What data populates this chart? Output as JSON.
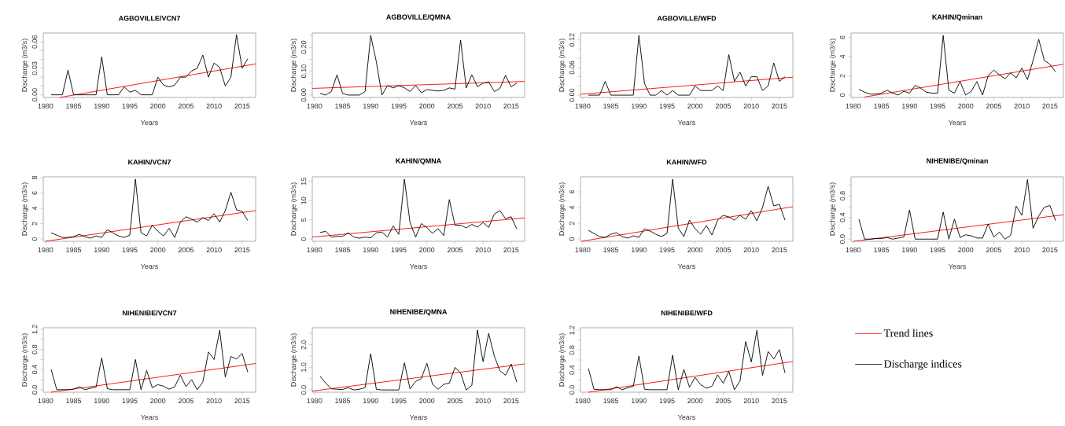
{
  "chart_data": [
    {
      "type": "line",
      "title": "AGBOVILLE/VCN7",
      "xlabel": "Years",
      "ylabel": "Discharge (m3/s)",
      "x": [
        1981,
        1982,
        1983,
        1984,
        1985,
        1986,
        1987,
        1988,
        1989,
        1990,
        1991,
        1992,
        1993,
        1994,
        1995,
        1996,
        1997,
        1998,
        1999,
        2000,
        2001,
        2002,
        2003,
        2004,
        2005,
        2006,
        2007,
        2008,
        2009,
        2010,
        2011,
        2012,
        2013,
        2014,
        2015,
        2016
      ],
      "xlim": [
        1979.6,
        2017.4
      ],
      "xticks": [
        1980,
        1985,
        1990,
        1995,
        2000,
        2005,
        2010,
        2015
      ],
      "ylim": [
        -0.003,
        0.07
      ],
      "yticks": [
        {
          "value": 0,
          "label": "0.00"
        },
        {
          "value": 0.01,
          "label": null
        },
        {
          "value": 0.02,
          "label": null
        },
        0.03,
        {
          "value": 0.04,
          "label": null
        },
        {
          "value": 0.05,
          "label": null
        },
        0.06
      ],
      "series": [
        {
          "color": "#ff0000",
          "x": [
            1982.5,
            2017.4
          ],
          "values": [
            -0.003,
            0.035
          ]
        },
        {
          "color": "#000000",
          "values": [
            0,
            0,
            0,
            0.028,
            0,
            0,
            0,
            0,
            0,
            0.043,
            0,
            0,
            0,
            0.009,
            0.003,
            0.005,
            0,
            0,
            0,
            0.02,
            0.011,
            0.009,
            0.011,
            0.02,
            0.02,
            0.027,
            0.03,
            0.045,
            0.02,
            0.036,
            0.031,
            0.01,
            0.02,
            0.068,
            0.03,
            0.041
          ]
        }
      ]
    },
    {
      "type": "line",
      "title": "AGBOVILLE/QMNA",
      "xlabel": "Years",
      "ylabel": "Discharge (m3/s)",
      "x": [
        1981,
        1982,
        1983,
        1984,
        1985,
        1986,
        1987,
        1988,
        1989,
        1990,
        1991,
        1992,
        1993,
        1994,
        1995,
        1996,
        1997,
        1998,
        1999,
        2000,
        2001,
        2002,
        2003,
        2004,
        2005,
        2006,
        2007,
        2008,
        2009,
        2010,
        2011,
        2012,
        2013,
        2014,
        2015,
        2016
      ],
      "xlim": [
        1979.6,
        2017.4
      ],
      "xticks": [
        1980,
        1985,
        1990,
        1995,
        2000,
        2005,
        2010,
        2015
      ],
      "ylim": [
        -0.01,
        0.26
      ],
      "yticks": [
        {
          "value": 0,
          "label": "0.00"
        },
        {
          "value": 0.05,
          "label": null
        },
        {
          "value": 0.1,
          "label": "0.10"
        },
        {
          "value": 0.15,
          "label": null
        },
        {
          "value": 0.2,
          "label": "0.20"
        },
        {
          "value": 0.25,
          "label": null
        }
      ],
      "series": [
        {
          "color": "#ff0000",
          "x": [
            1979.6,
            2017.4
          ],
          "values": [
            0.028,
            0.057
          ]
        },
        {
          "color": "#000000",
          "values": [
            0.007,
            0,
            0.015,
            0.085,
            0.007,
            0,
            0,
            0,
            0.015,
            0.25,
            0.14,
            0,
            0.04,
            0.03,
            0.04,
            0.03,
            0.015,
            0.04,
            0.01,
            0.023,
            0.02,
            0.017,
            0.02,
            0.03,
            0.025,
            0.23,
            0.03,
            0.085,
            0.035,
            0.05,
            0.055,
            0.015,
            0.028,
            0.083,
            0.035,
            0.05
          ]
        }
      ]
    },
    {
      "type": "line",
      "title": "AGBOVILLE/WFD",
      "xlabel": "Years",
      "ylabel": "Discharge (m3/s)",
      "x": [
        1981,
        1982,
        1983,
        1984,
        1985,
        1986,
        1987,
        1988,
        1989,
        1990,
        1991,
        1992,
        1993,
        1994,
        1995,
        1996,
        1997,
        1998,
        1999,
        2000,
        2001,
        2002,
        2003,
        2004,
        2005,
        2006,
        2007,
        2008,
        2009,
        2010,
        2011,
        2012,
        2013,
        2014,
        2015,
        2016
      ],
      "xlim": [
        1979.6,
        2017.4
      ],
      "xticks": [
        1980,
        1985,
        1990,
        1995,
        2000,
        2005,
        2010,
        2015
      ],
      "ylim": [
        -0.005,
        0.135
      ],
      "yticks": [
        {
          "value": 0,
          "label": "0.00"
        },
        {
          "value": 0.02,
          "label": null
        },
        {
          "value": 0.04,
          "label": null
        },
        0.06,
        {
          "value": 0.08,
          "label": null
        },
        {
          "value": 0.1,
          "label": null
        },
        0.12
      ],
      "series": [
        {
          "color": "#ff0000",
          "x": [
            1979.6,
            2017.4
          ],
          "values": [
            0.002,
            0.039
          ]
        },
        {
          "color": "#000000",
          "values": [
            0,
            0,
            0,
            0.03,
            0,
            0,
            0,
            0,
            0,
            0.13,
            0.025,
            0,
            0,
            0.01,
            0,
            0.01,
            0,
            0,
            0,
            0.02,
            0.01,
            0.01,
            0.01,
            0.02,
            0.01,
            0.088,
            0.03,
            0.05,
            0.02,
            0.04,
            0.04,
            0.01,
            0.02,
            0.07,
            0.03,
            0.04
          ]
        }
      ]
    },
    {
      "type": "line",
      "title": "KAHIN/Qminan",
      "xlabel": "Years",
      "ylabel": "Discharge (m3/s)",
      "x": [
        1981,
        1982,
        1983,
        1984,
        1985,
        1986,
        1987,
        1988,
        1989,
        1990,
        1991,
        1992,
        1993,
        1994,
        1995,
        1996,
        1997,
        1998,
        1999,
        2000,
        2001,
        2002,
        2003,
        2004,
        2005,
        2006,
        2007,
        2008,
        2009,
        2010,
        2011,
        2012,
        2013,
        2014,
        2015,
        2016
      ],
      "xlim": [
        1979.6,
        2017.4
      ],
      "xticks": [
        1980,
        1985,
        1990,
        1995,
        2000,
        2005,
        2010,
        2015
      ],
      "ylim": [
        -0.25,
        6.45
      ],
      "yticks": [
        0,
        2,
        4,
        6
      ],
      "series": [
        {
          "color": "#ff0000",
          "x": [
            1982,
            2017.4
          ],
          "values": [
            -0.2,
            3.2
          ]
        },
        {
          "color": "#000000",
          "values": [
            0.6,
            0.3,
            0.1,
            0.1,
            0.2,
            0.5,
            0.2,
            0,
            0.4,
            0.2,
            1,
            0.7,
            0.3,
            0.2,
            0.2,
            6.2,
            0.5,
            0.2,
            1.4,
            0,
            0.4,
            1.4,
            0,
            2,
            2.6,
            2.1,
            1.7,
            2.3,
            1.8,
            2.8,
            1.6,
            3.6,
            5.8,
            3.6,
            3.2,
            2.4
          ]
        }
      ]
    },
    {
      "type": "line",
      "title": "KAHIN/VCN7",
      "xlabel": "Years",
      "ylabel": "Discharge (m3/s)",
      "x": [
        1981,
        1982,
        1983,
        1984,
        1985,
        1986,
        1987,
        1988,
        1989,
        1990,
        1991,
        1992,
        1993,
        1994,
        1995,
        1996,
        1997,
        1998,
        1999,
        2000,
        2001,
        2002,
        2003,
        2004,
        2005,
        2006,
        2007,
        2008,
        2009,
        2010,
        2011,
        2012,
        2013,
        2014,
        2015,
        2016
      ],
      "xlim": [
        1979.6,
        2017.4
      ],
      "xticks": [
        1980,
        1985,
        1990,
        1995,
        2000,
        2005,
        2010,
        2015
      ],
      "ylim": [
        -0.3,
        8.1
      ],
      "yticks": [
        0,
        2,
        4,
        6,
        8
      ],
      "series": [
        {
          "color": "#ff0000",
          "x": [
            1980,
            2017.4
          ],
          "values": [
            -0.3,
            3.7
          ]
        },
        {
          "color": "#000000",
          "values": [
            0.8,
            0.5,
            0.2,
            0.2,
            0.3,
            0.6,
            0.3,
            0.1,
            0.4,
            0.2,
            1.2,
            0.8,
            0.4,
            0.2,
            0.5,
            7.8,
            0.8,
            0.4,
            1.8,
            1,
            0.4,
            1.4,
            0.2,
            2.2,
            2.9,
            2.6,
            2.2,
            2.8,
            2.4,
            3.3,
            2.2,
            3.7,
            6.1,
            3.8,
            3.6,
            2.4
          ]
        }
      ]
    },
    {
      "type": "line",
      "title": "KAHIN/QMNA",
      "xlabel": "Years",
      "ylabel": "Discharge (m3/s)",
      "x": [
        1981,
        1982,
        1983,
        1984,
        1985,
        1986,
        1987,
        1988,
        1989,
        1990,
        1991,
        1992,
        1993,
        1994,
        1995,
        1996,
        1997,
        1998,
        1999,
        2000,
        2001,
        2002,
        2003,
        2004,
        2005,
        2006,
        2007,
        2008,
        2009,
        2010,
        2011,
        2012,
        2013,
        2014,
        2015,
        2016
      ],
      "xlim": [
        1979.6,
        2017.4
      ],
      "xticks": [
        1980,
        1985,
        1990,
        1995,
        2000,
        2005,
        2010,
        2015
      ],
      "ylim": [
        -0.6,
        16.2
      ],
      "yticks": [
        0,
        5,
        10,
        15
      ],
      "series": [
        {
          "color": "#ff0000",
          "x": [
            1979.6,
            2017.4
          ],
          "values": [
            0.5,
            5.5
          ]
        },
        {
          "color": "#000000",
          "values": [
            1.7,
            2,
            0.5,
            0.7,
            0.7,
            1.6,
            0.5,
            0.2,
            0.5,
            0.3,
            1.6,
            1.8,
            0.5,
            3.4,
            1.2,
            15.6,
            4.3,
            0.5,
            4,
            3,
            1.5,
            2.7,
            0.9,
            10.3,
            3.6,
            3.6,
            2.9,
            3.8,
            3.1,
            4.3,
            3,
            6.5,
            7.4,
            5.3,
            5.8,
            2.6
          ]
        }
      ]
    },
    {
      "type": "line",
      "title": "KAHIN/WFD",
      "xlabel": "Years",
      "ylabel": "Discharge (m3/s)",
      "x": [
        1981,
        1982,
        1983,
        1984,
        1985,
        1986,
        1987,
        1988,
        1989,
        1990,
        1991,
        1992,
        1993,
        1994,
        1995,
        1996,
        1997,
        1998,
        1999,
        2000,
        2001,
        2002,
        2003,
        2004,
        2005,
        2006,
        2007,
        2008,
        2009,
        2010,
        2011,
        2012,
        2013,
        2014,
        2015,
        2016
      ],
      "xlim": [
        1979.6,
        2017.4
      ],
      "xticks": [
        1980,
        1985,
        1990,
        1995,
        2000,
        2005,
        2010,
        2015
      ],
      "ylim": [
        -0.3,
        7.9
      ],
      "yticks": [
        0,
        2,
        4,
        6
      ],
      "series": [
        {
          "color": "#ff0000",
          "x": [
            1979.8,
            2017.4
          ],
          "values": [
            -0.3,
            4.1
          ]
        },
        {
          "color": "#000000",
          "values": [
            1.1,
            0.7,
            0.3,
            0.2,
            0.6,
            0.8,
            0.3,
            0.1,
            0.4,
            0.2,
            1.3,
            1,
            0.6,
            0.3,
            0.7,
            7.6,
            1.4,
            0.3,
            2.4,
            1.3,
            0.6,
            1.7,
            0.5,
            2.4,
            3,
            2.8,
            2.4,
            3,
            2.5,
            3.6,
            2.3,
            4,
            6.7,
            4.2,
            4.4,
            2.4
          ]
        }
      ]
    },
    {
      "type": "line",
      "title": "NIHENIBE/Qminan",
      "xlabel": "Years",
      "ylabel": "Discharge (m3/s)",
      "x": [
        1981,
        1982,
        1983,
        1984,
        1985,
        1986,
        1987,
        1988,
        1989,
        1990,
        1991,
        1992,
        1993,
        1994,
        1995,
        1996,
        1997,
        1998,
        1999,
        2000,
        2001,
        2002,
        2003,
        2004,
        2005,
        2006,
        2007,
        2008,
        2009,
        2010,
        2011,
        2012,
        2013,
        2014,
        2015,
        2016
      ],
      "xlim": [
        1979.6,
        2017.4
      ],
      "xticks": [
        1980,
        1985,
        1990,
        1995,
        2000,
        2005,
        2010,
        2015
      ],
      "ylim": [
        -0.04,
        1.15
      ],
      "yticks": [
        {
          "value": 0,
          "label": "0.0"
        },
        {
          "value": 0.2,
          "label": null
        },
        0.4,
        {
          "value": 0.6,
          "label": null
        },
        0.8,
        {
          "value": 1,
          "label": null
        }
      ],
      "series": [
        {
          "color": "#ff0000",
          "x": [
            1980.1,
            2017.4
          ],
          "values": [
            -0.04,
            0.45
          ]
        },
        {
          "color": "#000000",
          "values": [
            0.37,
            0,
            0,
            0.01,
            0.01,
            0.03,
            0,
            0.02,
            0.04,
            0.54,
            0,
            0,
            0,
            0,
            0,
            0.5,
            0,
            0.37,
            0.03,
            0.08,
            0.06,
            0.02,
            0.02,
            0.28,
            0.04,
            0.13,
            0,
            0.07,
            0.61,
            0.44,
            1.1,
            0.2,
            0.43,
            0.59,
            0.62,
            0.34
          ]
        }
      ]
    },
    {
      "type": "line",
      "title": "NIHENIBE/VCN7",
      "xlabel": "Years",
      "ylabel": "Discharge (m3/s)",
      "x": [
        1981,
        1982,
        1983,
        1984,
        1985,
        1986,
        1987,
        1988,
        1989,
        1990,
        1991,
        1992,
        1993,
        1994,
        1995,
        1996,
        1997,
        1998,
        1999,
        2000,
        2001,
        2002,
        2003,
        2004,
        2005,
        2006,
        2007,
        2008,
        2009,
        2010,
        2011,
        2012,
        2013,
        2014,
        2015,
        2016
      ],
      "xlim": [
        1979.6,
        2017.4
      ],
      "xticks": [
        1980,
        1985,
        1990,
        1995,
        2000,
        2005,
        2010,
        2015
      ],
      "ylim": [
        -0.05,
        1.23
      ],
      "yticks": [
        {
          "value": 0,
          "label": "0.0"
        },
        {
          "value": 0.2,
          "label": null
        },
        0.4,
        {
          "value": 0.6,
          "label": null
        },
        0.8,
        {
          "value": 1,
          "label": null
        },
        1.2
      ],
      "series": [
        {
          "color": "#ff0000",
          "x": [
            1981,
            2017.4
          ],
          "values": [
            -0.05,
            0.52
          ]
        },
        {
          "color": "#000000",
          "values": [
            0.4,
            0,
            0,
            0,
            0.01,
            0.06,
            0,
            0.03,
            0.05,
            0.63,
            0.02,
            0,
            0,
            0,
            0,
            0.6,
            0,
            0.38,
            0.04,
            0.1,
            0.07,
            0.01,
            0.06,
            0.29,
            0.06,
            0.2,
            0,
            0.15,
            0.75,
            0.6,
            1.18,
            0.25,
            0.66,
            0.61,
            0.72,
            0.35
          ]
        }
      ]
    },
    {
      "type": "line",
      "title": "NIHENIBE/QMNA",
      "xlabel": "Years",
      "ylabel": "Discharge (m3/s)",
      "x": [
        1981,
        1982,
        1983,
        1984,
        1985,
        1986,
        1987,
        1988,
        1989,
        1990,
        1991,
        1992,
        1993,
        1994,
        1995,
        1996,
        1997,
        1998,
        1999,
        2000,
        2001,
        2002,
        2003,
        2004,
        2005,
        2006,
        2007,
        2008,
        2009,
        2010,
        2011,
        2012,
        2013,
        2014,
        2015,
        2016
      ],
      "xlim": [
        1979.6,
        2017.4
      ],
      "xticks": [
        1980,
        1985,
        1990,
        1995,
        2000,
        2005,
        2010,
        2015
      ],
      "ylim": [
        -0.1,
        2.75
      ],
      "yticks": [
        {
          "value": 0,
          "label": "0.0"
        },
        {
          "value": 0.5,
          "label": null
        },
        {
          "value": 1,
          "label": "1.0"
        },
        {
          "value": 1.5,
          "label": null
        },
        {
          "value": 2,
          "label": "2.0"
        },
        {
          "value": 2.5,
          "label": null
        }
      ],
      "series": [
        {
          "color": "#ff0000",
          "x": [
            1979.6,
            2017.4
          ],
          "values": [
            -0.05,
            1.15
          ]
        },
        {
          "color": "#000000",
          "values": [
            0.6,
            0.3,
            0.05,
            0.03,
            0.02,
            0.1,
            0,
            0.03,
            0.1,
            1.6,
            0.03,
            0,
            0,
            0,
            0,
            1.2,
            0.05,
            0.38,
            0.5,
            1.18,
            0.25,
            0.03,
            0.25,
            0.3,
            1,
            0.75,
            0,
            0.2,
            2.65,
            1.25,
            2.5,
            1.5,
            0.85,
            0.65,
            1.15,
            0.35
          ]
        }
      ]
    },
    {
      "type": "line",
      "title": "NIHENIBE/WFD",
      "xlabel": "Years",
      "ylabel": "Discharge (m3/s)",
      "x": [
        1981,
        1982,
        1983,
        1984,
        1985,
        1986,
        1987,
        1988,
        1989,
        1990,
        1991,
        1992,
        1993,
        1994,
        1995,
        1996,
        1997,
        1998,
        1999,
        2000,
        2001,
        2002,
        2003,
        2004,
        2005,
        2006,
        2007,
        2008,
        2009,
        2010,
        2011,
        2012,
        2013,
        2014,
        2015,
        2016
      ],
      "xlim": [
        1979.6,
        2017.4
      ],
      "xticks": [
        1980,
        1985,
        1990,
        1995,
        2000,
        2005,
        2010,
        2015
      ],
      "ylim": [
        -0.05,
        1.25
      ],
      "yticks": [
        {
          "value": 0,
          "label": "0.0"
        },
        {
          "value": 0.2,
          "label": null
        },
        0.4,
        {
          "value": 0.6,
          "label": null
        },
        0.8,
        {
          "value": 1,
          "label": null
        },
        1.2
      ],
      "legend": "right",
      "series": [
        {
          "name": "Trend lines",
          "color": "#ff0000",
          "x": [
            1981,
            2017.4
          ],
          "values": [
            -0.05,
            0.57
          ]
        },
        {
          "name": "Discharge indices",
          "color": "#000000",
          "values": [
            0.43,
            0.01,
            0,
            0,
            0,
            0.06,
            0,
            0.04,
            0.07,
            0.68,
            0.01,
            0,
            0,
            0,
            0,
            0.7,
            0,
            0.41,
            0.05,
            0.25,
            0.1,
            0.03,
            0.07,
            0.3,
            0.13,
            0.37,
            0,
            0.18,
            0.97,
            0.56,
            1.2,
            0.29,
            0.77,
            0.62,
            0.81,
            0.34
          ]
        }
      ]
    }
  ]
}
